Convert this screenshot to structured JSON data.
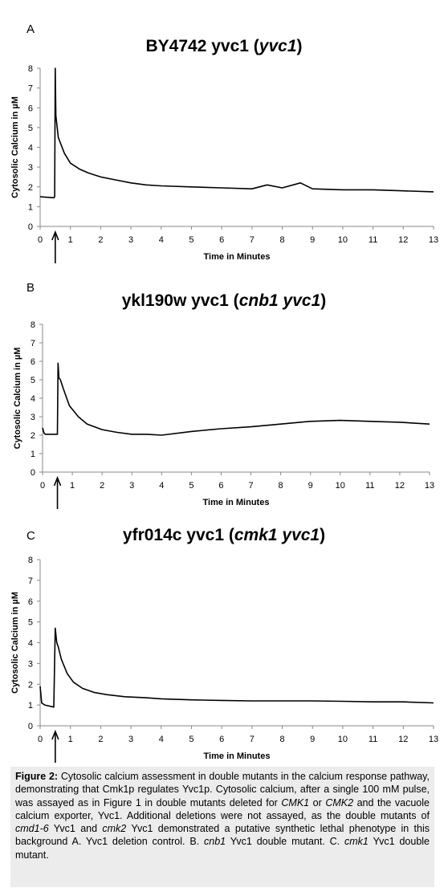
{
  "chart_data": [
    {
      "type": "line",
      "panel_label": "A",
      "title": "BY4742 yvc1 (",
      "title_italic": "yvc1",
      "title_suffix": ")",
      "xlabel": "Time in Minutes",
      "ylabel": "Cytosolic Calcium in µM",
      "xlim": [
        0,
        13
      ],
      "ylim": [
        0,
        8
      ],
      "xticks": [
        "0",
        "1",
        "2",
        "3",
        "4",
        "5",
        "6",
        "7",
        "8",
        "9",
        "10",
        "11",
        "12",
        "13"
      ],
      "yticks": [
        "0",
        "1",
        "2",
        "3",
        "4",
        "5",
        "6",
        "7",
        "8"
      ],
      "grid": false,
      "pulse_marker_x": 0.5,
      "x": [
        0,
        0.45,
        0.48,
        0.5,
        0.52,
        0.6,
        0.8,
        1.0,
        1.3,
        1.6,
        2.0,
        2.5,
        3.0,
        3.5,
        4.0,
        5.0,
        6.0,
        7.0,
        7.5,
        8.0,
        8.6,
        9.0,
        10.0,
        11.0,
        12.0,
        13.0
      ],
      "values": [
        1.5,
        1.45,
        1.5,
        8.0,
        5.6,
        4.5,
        3.7,
        3.2,
        2.9,
        2.7,
        2.5,
        2.35,
        2.2,
        2.1,
        2.05,
        2.0,
        1.95,
        1.9,
        2.1,
        1.95,
        2.2,
        1.9,
        1.85,
        1.85,
        1.8,
        1.75
      ]
    },
    {
      "type": "line",
      "panel_label": "B",
      "title": "ykl190w yvc1 (",
      "title_italic": "cnb1 yvc1",
      "title_suffix": ")",
      "xlabel": "Time in Minutes",
      "ylabel": "Cytosolic Calcium in µM",
      "xlim": [
        0,
        13
      ],
      "ylim": [
        0,
        8
      ],
      "xticks": [
        "0",
        "1",
        "2",
        "3",
        "4",
        "5",
        "6",
        "7",
        "8",
        "9",
        "10",
        "11",
        "12",
        "13"
      ],
      "yticks": [
        "0",
        "1",
        "2",
        "3",
        "4",
        "5",
        "6",
        "7",
        "8"
      ],
      "grid": false,
      "pulse_marker_x": 0.5,
      "x": [
        0,
        0.05,
        0.1,
        0.5,
        0.52,
        0.55,
        0.6,
        0.7,
        0.9,
        1.2,
        1.5,
        2.0,
        2.5,
        3.0,
        3.5,
        4.0,
        5.0,
        6.0,
        7.0,
        8.0,
        9.0,
        10.0,
        11.0,
        12.0,
        13.0
      ],
      "values": [
        2.4,
        2.1,
        2.05,
        2.05,
        5.9,
        5.1,
        5.0,
        4.5,
        3.6,
        3.0,
        2.6,
        2.3,
        2.15,
        2.05,
        2.05,
        2.0,
        2.2,
        2.35,
        2.45,
        2.6,
        2.75,
        2.8,
        2.75,
        2.7,
        2.6
      ]
    },
    {
      "type": "line",
      "panel_label": "C",
      "title": "yfr014c yvc1 (",
      "title_italic": "cmk1 yvc1",
      "title_suffix": ")",
      "xlabel": "Time in Minutes",
      "ylabel": "Cytosolic Calcium in µM",
      "xlim": [
        0,
        13
      ],
      "ylim": [
        0,
        8
      ],
      "xticks": [
        "0",
        "1",
        "2",
        "3",
        "4",
        "5",
        "6",
        "7",
        "8",
        "9",
        "10",
        "11",
        "12",
        "13"
      ],
      "yticks": [
        "0",
        "1",
        "2",
        "3",
        "4",
        "5",
        "6",
        "7",
        "8"
      ],
      "grid": false,
      "pulse_marker_x": 0.5,
      "x": [
        0,
        0.05,
        0.15,
        0.45,
        0.5,
        0.55,
        0.6,
        0.7,
        0.9,
        1.1,
        1.4,
        1.8,
        2.2,
        2.8,
        3.5,
        4.0,
        5.0,
        6.0,
        7.0,
        8.0,
        9.0,
        10.0,
        11.0,
        12.0,
        13.0
      ],
      "values": [
        1.9,
        1.1,
        1.0,
        0.9,
        4.7,
        4.0,
        3.8,
        3.2,
        2.5,
        2.1,
        1.8,
        1.6,
        1.5,
        1.4,
        1.35,
        1.3,
        1.25,
        1.22,
        1.2,
        1.2,
        1.2,
        1.18,
        1.15,
        1.15,
        1.1
      ]
    }
  ],
  "caption": {
    "fig_label": "Figure 2:",
    "p1": " Cytosolic calcium assessment in double mutants in the calcium response pathway, demonstrating that Cmk1p regulates Yvc1p. Cytosolic calcium, after a single 100 mM pulse, was assayed as in Figure 1 in double mutants deleted for ",
    "cmk1": "CMK1",
    "p2": " or ",
    "cmk2": "CMK2",
    "p3": " and the vacuole calcium exporter, Yvc1. Additional deletions were not assayed, as the double mutants of ",
    "cmd1": "cmd1-6",
    "p4": " Yvc1 and ",
    "cmk2b": "cmk2",
    "p5": " Yvc1 demonstrated a putative synthetic lethal phenotype in this background A. Yvc1 deletion control. B. ",
    "cnb1": "cnb1",
    "p6": " Yvc1 double mutant. C. ",
    "cmk1b": "cmk1",
    "p7": " Yvc1 double mutant."
  }
}
